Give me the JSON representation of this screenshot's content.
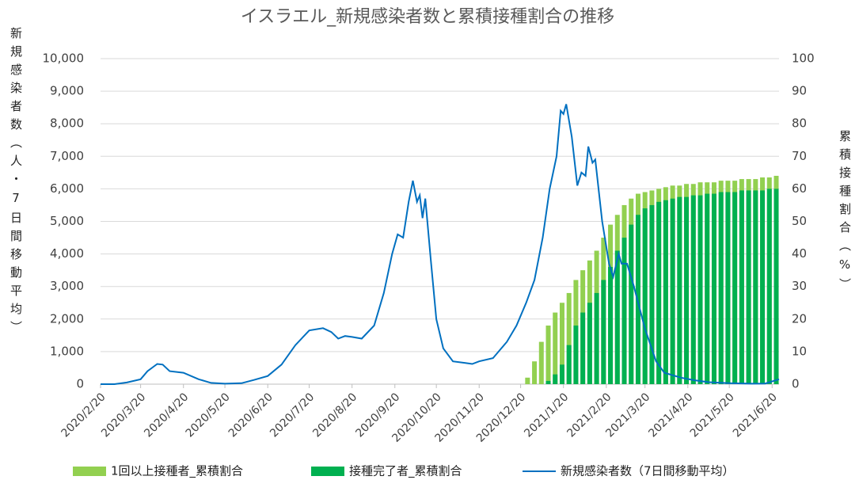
{
  "chart_data": {
    "type": "bar-line",
    "title": "イスラエル_新規感染者数と累積接種割合の推移",
    "y_label": "新規感染者数（人・7日間移動平均）",
    "y2_label": "累積接種割合（%）",
    "xlim": [
      "2020/2/20",
      "2021/6/25"
    ],
    "xticks": [
      "2020/2/20",
      "2020/3/20",
      "2020/4/20",
      "2020/5/20",
      "2020/6/20",
      "2020/7/20",
      "2020/8/20",
      "2020/9/20",
      "2020/10/20",
      "2020/11/20",
      "2020/12/20",
      "2021/1/20",
      "2021/2/20",
      "2021/3/20",
      "2021/4/20",
      "2021/5/20",
      "2021/6/20"
    ],
    "ylim": [
      0,
      10000
    ],
    "yticks": [
      0,
      {
        "value": 1000,
        "label": "1,000"
      },
      {
        "value": 2000,
        "label": "2,000"
      },
      {
        "value": 3000,
        "label": "3,000"
      },
      {
        "value": 4000,
        "label": "4,000"
      },
      {
        "value": 5000,
        "label": "5,000"
      },
      {
        "value": 6000,
        "label": "6,000"
      },
      {
        "value": 7000,
        "label": "7,000"
      },
      {
        "value": 8000,
        "label": "8,000"
      },
      {
        "value": 9000,
        "label": "9,000"
      },
      {
        "value": 10000,
        "label": "10,000"
      }
    ],
    "y2lim": [
      0,
      100
    ],
    "y2ticks": [
      0,
      10,
      20,
      30,
      40,
      50,
      60,
      70,
      80,
      90,
      100
    ],
    "grid": true,
    "legend": "bottom",
    "bar_x": [
      "2020/12/20",
      "2020/12/25",
      "2020/12/30",
      "2021/1/4",
      "2021/1/9",
      "2021/1/14",
      "2021/1/19",
      "2021/1/24",
      "2021/1/29",
      "2021/2/3",
      "2021/2/8",
      "2021/2/13",
      "2021/2/18",
      "2021/2/23",
      "2021/2/28",
      "2021/3/5",
      "2021/3/10",
      "2021/3/15",
      "2021/3/20",
      "2021/3/25",
      "2021/3/30",
      "2021/4/4",
      "2021/4/9",
      "2021/4/14",
      "2021/4/19",
      "2021/4/24",
      "2021/4/29",
      "2021/5/4",
      "2021/5/9",
      "2021/5/14",
      "2021/5/19",
      "2021/5/24",
      "2021/5/29",
      "2021/6/3",
      "2021/6/8",
      "2021/6/13",
      "2021/6/18",
      "2021/6/23"
    ],
    "line_x": [
      "2020/2/20",
      "2020/3/1",
      "2020/3/10",
      "2020/3/20",
      "2020/3/25",
      "2020/4/1",
      "2020/4/5",
      "2020/4/10",
      "2020/4/20",
      "2020/5/1",
      "2020/5/10",
      "2020/5/20",
      "2020/6/1",
      "2020/6/10",
      "2020/6/20",
      "2020/6/30",
      "2020/7/10",
      "2020/7/20",
      "2020/7/30",
      "2020/8/5",
      "2020/8/10",
      "2020/8/15",
      "2020/8/20",
      "2020/8/27",
      "2020/9/5",
      "2020/9/12",
      "2020/9/18",
      "2020/9/22",
      "2020/9/26",
      "2020/9/30",
      "2020/10/3",
      "2020/10/6",
      "2020/10/8",
      "2020/10/10",
      "2020/10/12",
      "2020/10/16",
      "2020/10/20",
      "2020/10/25",
      "2020/11/1",
      "2020/11/10",
      "2020/11/15",
      "2020/11/20",
      "2020/11/30",
      "2020/12/10",
      "2020/12/17",
      "2020/12/24",
      "2020/12/30",
      "2021/1/5",
      "2021/1/10",
      "2021/1/15",
      "2021/1/18",
      "2021/1/20",
      "2021/1/22",
      "2021/1/26",
      "2021/1/30",
      "2021/2/2",
      "2021/2/5",
      "2021/2/7",
      "2021/2/10",
      "2021/2/12",
      "2021/2/17",
      "2021/2/22",
      "2021/2/25",
      "2021/3/1",
      "2021/3/3",
      "2021/3/7",
      "2021/3/12",
      "2021/3/20",
      "2021/3/28",
      "2021/4/3",
      "2021/4/15",
      "2021/4/25",
      "2021/5/5",
      "2021/5/20",
      "2021/6/5",
      "2021/6/15",
      "2021/6/25"
    ],
    "series": [
      {
        "name": "1回以上接種者_累積割合",
        "kind": "bar",
        "axis": "y2",
        "color": "#92d050",
        "values": [
          0,
          2,
          7,
          13,
          18,
          22,
          25,
          28,
          32,
          35,
          38,
          41,
          45,
          49,
          52,
          55,
          57,
          58.5,
          59,
          59.5,
          60,
          60.5,
          61,
          61,
          61.5,
          61.5,
          62,
          62,
          62,
          62.5,
          62.5,
          62.5,
          63,
          63,
          63,
          63.5,
          63.5,
          64
        ]
      },
      {
        "name": "接種完了者_累積割合",
        "kind": "bar",
        "axis": "y2",
        "color": "#00b050",
        "values": [
          0,
          0,
          0,
          0,
          1,
          3,
          6,
          12,
          18,
          22,
          25,
          28,
          32,
          36,
          41,
          45,
          49,
          52,
          54,
          55,
          56,
          56.5,
          57,
          57.5,
          57.5,
          58,
          58,
          58.5,
          58.5,
          59,
          59,
          59,
          59.5,
          59.5,
          59.5,
          59.5,
          60,
          60
        ]
      },
      {
        "name": "新規感染者数（7日間移動平均）",
        "kind": "line",
        "color": "#0070c0",
        "values": [
          0,
          0,
          50,
          150,
          400,
          620,
          600,
          400,
          350,
          150,
          40,
          15,
          30,
          130,
          250,
          600,
          1200,
          1650,
          1720,
          1600,
          1400,
          1480,
          1450,
          1400,
          1800,
          2800,
          4000,
          4600,
          4500,
          5600,
          6250,
          5600,
          5800,
          5100,
          5700,
          3800,
          2000,
          1100,
          700,
          650,
          620,
          700,
          800,
          1300,
          1800,
          2500,
          3200,
          4500,
          6000,
          7000,
          8400,
          8300,
          8600,
          7600,
          6100,
          6500,
          6400,
          7300,
          6800,
          6900,
          5000,
          3700,
          3300,
          4000,
          3700,
          3700,
          3000,
          1700,
          700,
          350,
          200,
          120,
          60,
          30,
          15,
          20,
          150
        ]
      }
    ]
  }
}
